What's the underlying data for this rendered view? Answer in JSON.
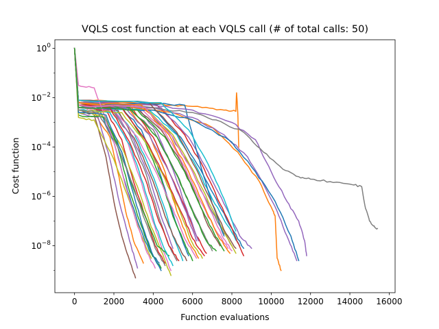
{
  "chart_data": {
    "type": "line",
    "title": "VQLS cost function at each VQLS call (# of total calls: 50)",
    "xlabel": "Function evaluations",
    "ylabel": "Cost function",
    "xlim": [
      -1000,
      16300
    ],
    "ylim_log10": [
      -9.9,
      0.35
    ],
    "yscale": "log",
    "xticks": [
      0,
      2000,
      4000,
      6000,
      8000,
      10000,
      12000,
      14000,
      16000
    ],
    "xtick_labels": [
      "0",
      "2000",
      "4000",
      "6000",
      "8000",
      "10000",
      "12000",
      "14000",
      "16000"
    ],
    "yticks_exp": [
      0,
      -2,
      -4,
      -6,
      -8
    ],
    "grid": false,
    "legend": "none",
    "palette": [
      "#1f77b4",
      "#ff7f0e",
      "#2ca02c",
      "#d62728",
      "#9467bd",
      "#8c564b",
      "#e377c2",
      "#7f7f7f",
      "#bcbd22",
      "#17becf"
    ],
    "series": [
      {
        "color": "#1f77b4",
        "x": [
          0,
          200,
          1200,
          2000,
          2600,
          3200,
          3800,
          4300
        ],
        "log10_y": [
          0,
          -2.3,
          -2.4,
          -3.8,
          -5.5,
          -7,
          -8.2,
          -8.7
        ]
      },
      {
        "color": "#ff7f0e",
        "x": [
          0,
          200,
          1000,
          1800,
          2200,
          2600,
          3000,
          3500
        ],
        "log10_y": [
          0,
          -2.5,
          -2.6,
          -3.6,
          -5,
          -6.6,
          -7.8,
          -8.7
        ]
      },
      {
        "color": "#2ca02c",
        "x": [
          0,
          200,
          1400,
          2200,
          2800,
          3400,
          3900,
          4400
        ],
        "log10_y": [
          0,
          -2.3,
          -2.5,
          -4,
          -5.8,
          -7.2,
          -8.3,
          -8.9
        ]
      },
      {
        "color": "#d62728",
        "x": [
          0,
          200,
          1600,
          2400,
          3000,
          3600,
          4100,
          4600
        ],
        "log10_y": [
          0,
          -2.4,
          -2.5,
          -3.7,
          -5.4,
          -6.8,
          -8,
          -8.7
        ]
      },
      {
        "color": "#9467bd",
        "x": [
          0,
          200,
          1200,
          1800,
          2300,
          2800,
          3200
        ],
        "log10_y": [
          0,
          -2.6,
          -2.8,
          -4.5,
          -6.3,
          -7.8,
          -8.9
        ]
      },
      {
        "color": "#8c564b",
        "x": [
          0,
          200,
          1000,
          1600,
          2000,
          2400,
          2800,
          3100
        ],
        "log10_y": [
          0,
          -2.5,
          -2.7,
          -4.4,
          -6.2,
          -7.6,
          -8.6,
          -9.3
        ]
      },
      {
        "color": "#e377c2",
        "x": [
          0,
          200,
          1600,
          2600,
          3300,
          3900,
          4400,
          4900
        ],
        "log10_y": [
          0,
          -2.2,
          -2.4,
          -3.6,
          -5.2,
          -6.8,
          -8,
          -9
        ]
      },
      {
        "color": "#7f7f7f",
        "x": [
          0,
          200,
          1800,
          2800,
          3600,
          4200,
          4700,
          5200
        ],
        "log10_y": [
          0,
          -2.3,
          -2.4,
          -3.5,
          -5,
          -6.6,
          -7.8,
          -8.6
        ]
      },
      {
        "color": "#bcbd22",
        "x": [
          0,
          200,
          1400,
          2400,
          3200,
          3800,
          4400,
          4900
        ],
        "log10_y": [
          0,
          -2.6,
          -2.7,
          -4,
          -5.6,
          -7,
          -8.2,
          -9.2
        ]
      },
      {
        "color": "#17becf",
        "x": [
          0,
          200,
          2000,
          3000,
          3800,
          4500,
          5000,
          5500
        ],
        "log10_y": [
          0,
          -2.2,
          -2.4,
          -3.4,
          -4.8,
          -6.3,
          -7.6,
          -8.6
        ]
      },
      {
        "color": "#1f77b4",
        "x": [
          0,
          200,
          2200,
          3400,
          4200,
          4800,
          5400,
          5800
        ],
        "log10_y": [
          0,
          -2.1,
          -2.2,
          -3.3,
          -4.7,
          -6.2,
          -7.6,
          -8.4
        ]
      },
      {
        "color": "#ff7f0e",
        "x": [
          0,
          200,
          2600,
          3800,
          4600,
          5200,
          5800,
          6300
        ],
        "log10_y": [
          0,
          -2.2,
          -2.3,
          -3.5,
          -5,
          -6.6,
          -7.8,
          -8.5
        ]
      },
      {
        "color": "#2ca02c",
        "x": [
          0,
          200,
          2400,
          3600,
          4400,
          5000,
          5600,
          6000
        ],
        "log10_y": [
          0,
          -2.3,
          -2.4,
          -3.8,
          -5.3,
          -6.8,
          -7.9,
          -8.6
        ]
      },
      {
        "color": "#d62728",
        "x": [
          0,
          200,
          2800,
          4000,
          4800,
          5600,
          6200,
          6700
        ],
        "log10_y": [
          0,
          -2.2,
          -2.3,
          -3.6,
          -5,
          -6.4,
          -7.6,
          -8.3
        ]
      },
      {
        "color": "#9467bd",
        "x": [
          0,
          200,
          3000,
          4200,
          5000,
          5700,
          6300
        ],
        "log10_y": [
          0,
          -2.1,
          -2.2,
          -3.4,
          -4.9,
          -6.5,
          -7.8
        ]
      },
      {
        "color": "#8c564b",
        "x": [
          0,
          200,
          3000,
          4400,
          5400,
          6200,
          6800,
          7400
        ],
        "log10_y": [
          0,
          -2.2,
          -2.3,
          -3.3,
          -4.6,
          -6,
          -7.2,
          -8
        ]
      },
      {
        "color": "#e377c2",
        "x": [
          0,
          200,
          3200,
          4600,
          5600,
          6400,
          7200,
          7800
        ],
        "log10_y": [
          0,
          -2.2,
          -2.3,
          -3.4,
          -4.8,
          -6.2,
          -7.4,
          -8.1
        ]
      },
      {
        "color": "#7f7f7f",
        "x": [
          0,
          200,
          3400,
          4800,
          5800,
          6600,
          7400,
          8000
        ],
        "log10_y": [
          0,
          -2.2,
          -2.3,
          -3.4,
          -4.7,
          -6,
          -7.2,
          -8
        ]
      },
      {
        "color": "#bcbd22",
        "x": [
          0,
          200,
          3600,
          5000,
          6000,
          6800,
          7600,
          8200
        ],
        "log10_y": [
          0,
          -2.3,
          -2.4,
          -3.5,
          -4.9,
          -6.2,
          -7.4,
          -8.3
        ]
      },
      {
        "color": "#17becf",
        "x": [
          0,
          200,
          3800,
          5200,
          6200,
          7000,
          7800,
          8400
        ],
        "log10_y": [
          0,
          -2.4,
          -2.5,
          -3.5,
          -4.8,
          -6.1,
          -7.2,
          -8
        ]
      },
      {
        "color": "#1f77b4",
        "x": [
          0,
          200,
          4000,
          5400,
          6400,
          7200,
          8000,
          8600
        ],
        "log10_y": [
          0,
          -2.3,
          -2.4,
          -3.6,
          -4.9,
          -6.1,
          -7.3,
          -8.1
        ]
      },
      {
        "color": "#d62728",
        "x": [
          0,
          200,
          4200,
          5600,
          6600,
          7400,
          8100,
          8600
        ],
        "log10_y": [
          0,
          -2.2,
          -2.3,
          -3.5,
          -4.9,
          -6.3,
          -7.5,
          -8.4
        ]
      },
      {
        "color": "#9467bd",
        "x": [
          0,
          200,
          4400,
          5800,
          6800,
          7600,
          8400,
          9000
        ],
        "log10_y": [
          0,
          -2.3,
          -2.4,
          -3.6,
          -5,
          -6.3,
          -7.6,
          -8.1
        ]
      },
      {
        "color": "#ff7f0e",
        "x": [
          0,
          200,
          3000,
          5000,
          6500,
          7600,
          8200,
          8240,
          8300,
          8350
        ],
        "log10_y": [
          0,
          -2.1,
          -2.2,
          -2.3,
          -2.4,
          -2.5,
          -2.55,
          -1.8,
          -2.6,
          -4
        ]
      },
      {
        "color": "#1f77b4",
        "x": [
          0,
          200,
          4000,
          5600,
          6000,
          6500,
          7000,
          7600
        ],
        "log10_y": [
          0,
          -2.2,
          -2.25,
          -2.3,
          -3.5,
          -5,
          -6.3,
          -7.6
        ]
      },
      {
        "color": "#ff7f0e",
        "x": [
          0,
          200,
          3000,
          5000,
          7000,
          8300,
          9400,
          10100,
          10200,
          10300,
          10500
        ],
        "log10_y": [
          0,
          -2.2,
          -2.4,
          -2.6,
          -3.2,
          -4.2,
          -5.4,
          -6.6,
          -6.8,
          -8.5,
          -9
        ]
      },
      {
        "color": "#9467bd",
        "x": [
          0,
          200,
          4000,
          6000,
          7600,
          8800,
          9600,
          10300,
          10900,
          11300
        ],
        "log10_y": [
          0,
          -2.3,
          -2.4,
          -2.8,
          -3.5,
          -4.4,
          -5.5,
          -6.6,
          -7.8,
          -8.6
        ]
      },
      {
        "color": "#1f77b4",
        "x": [
          0,
          200,
          4000,
          6000,
          8000,
          9200,
          10200,
          11000,
          11400
        ],
        "log10_y": [
          0,
          -2.4,
          -2.5,
          -2.9,
          -3.8,
          -5,
          -6.2,
          -7.6,
          -8.6
        ]
      },
      {
        "color": "#9467bd",
        "x": [
          0,
          200,
          4000,
          6000,
          8000,
          9200,
          10000,
          10800,
          11400,
          11700,
          11800
        ],
        "log10_y": [
          0,
          -2.2,
          -2.3,
          -2.5,
          -3,
          -3.7,
          -5,
          -6.2,
          -7,
          -7.8,
          -8.4
        ]
      },
      {
        "color": "#7f7f7f",
        "x": [
          0,
          200,
          4000,
          6000,
          7200,
          8600,
          9600,
          10600,
          11400,
          12000,
          13000,
          14000,
          14600,
          14800,
          15000,
          15200,
          15400
        ],
        "log10_y": [
          0,
          -2.3,
          -2.4,
          -2.6,
          -2.9,
          -3.4,
          -4.2,
          -4.9,
          -5.2,
          -5.3,
          -5.4,
          -5.5,
          -5.6,
          -6.5,
          -7,
          -7.2,
          -7.3
        ]
      },
      {
        "color": "#8c564b",
        "x": [
          0,
          200,
          2200,
          3200,
          4000,
          4600,
          5200,
          5700
        ],
        "log10_y": [
          0,
          -2.4,
          -2.5,
          -3.9,
          -5.4,
          -6.8,
          -7.9,
          -8.6
        ]
      },
      {
        "color": "#2ca02c",
        "x": [
          0,
          200,
          1500,
          2400,
          3000,
          3700,
          4200,
          4800
        ],
        "log10_y": [
          0,
          -2.7,
          -2.8,
          -4.2,
          -5.7,
          -7,
          -8,
          -8.4
        ]
      },
      {
        "color": "#e377c2",
        "x": [
          0,
          200,
          2000,
          3200,
          4200,
          5000,
          5600,
          6200
        ],
        "log10_y": [
          0,
          -2.4,
          -2.5,
          -3.6,
          -5.1,
          -6.5,
          -7.7,
          -8.5
        ]
      },
      {
        "color": "#17becf",
        "x": [
          0,
          200,
          1800,
          2800,
          3500,
          4000,
          4500,
          5000
        ],
        "log10_y": [
          0,
          -2.5,
          -2.6,
          -3.9,
          -5.5,
          -6.9,
          -8,
          -8.8
        ]
      },
      {
        "color": "#bcbd22",
        "x": [
          0,
          200,
          1000,
          2000,
          2800,
          3400,
          3900
        ],
        "log10_y": [
          0,
          -2.8,
          -2.9,
          -4.5,
          -6.2,
          -7.6,
          -8.5
        ]
      },
      {
        "color": "#d62728",
        "x": [
          0,
          200,
          2400,
          3600,
          4600,
          5400,
          6000,
          6600
        ],
        "log10_y": [
          0,
          -2.3,
          -2.4,
          -3.7,
          -5.2,
          -6.6,
          -7.7,
          -8.4
        ]
      },
      {
        "color": "#7f7f7f",
        "x": [
          0,
          200,
          2600,
          4000,
          5000,
          5800,
          6500,
          7000
        ],
        "log10_y": [
          0,
          -2.2,
          -2.3,
          -3.3,
          -4.8,
          -6.2,
          -7.4,
          -8.2
        ]
      },
      {
        "color": "#9467bd",
        "x": [
          0,
          200,
          2000,
          3000,
          3800,
          4400,
          5000
        ],
        "log10_y": [
          0,
          -2.4,
          -2.5,
          -3.7,
          -5.2,
          -6.8,
          -8.1
        ]
      },
      {
        "color": "#ff7f0e",
        "x": [
          0,
          200,
          3400,
          4800,
          5800,
          6600,
          7300,
          7900
        ],
        "log10_y": [
          0,
          -2.2,
          -2.3,
          -3.5,
          -5,
          -6.4,
          -7.6,
          -8.3
        ]
      },
      {
        "color": "#2ca02c",
        "x": [
          0,
          200,
          2800,
          4200,
          5200,
          6000,
          6700,
          7200
        ],
        "log10_y": [
          0,
          -2.3,
          -2.4,
          -3.6,
          -5.1,
          -6.6,
          -7.8,
          -8.2
        ]
      },
      {
        "color": "#e377c2",
        "x": [
          0,
          200,
          1000,
          2000,
          2600,
          3200,
          3700,
          4100
        ],
        "log10_y": [
          0,
          -1.5,
          -1.6,
          -3.8,
          -5.6,
          -7.2,
          -8.3,
          -8.9
        ]
      },
      {
        "color": "#8c564b",
        "x": [
          0,
          200,
          3800,
          5200,
          6200,
          7000,
          7700,
          8200
        ],
        "log10_y": [
          0,
          -2.1,
          -2.2,
          -3.4,
          -4.9,
          -6.3,
          -7.5,
          -8.1
        ]
      },
      {
        "color": "#17becf",
        "x": [
          0,
          200,
          4400,
          5800,
          6800,
          7600,
          8200
        ],
        "log10_y": [
          0,
          -2.1,
          -2.2,
          -3.3,
          -4.7,
          -6.1,
          -7.4
        ]
      },
      {
        "color": "#1f77b4",
        "x": [
          0,
          200,
          1600,
          2400,
          3000,
          3500,
          4000,
          4400
        ],
        "log10_y": [
          0,
          -2.6,
          -2.7,
          -4.2,
          -5.9,
          -7.3,
          -8.4,
          -9
        ]
      },
      {
        "color": "#bcbd22",
        "x": [
          0,
          200,
          2400,
          3600,
          4600,
          5400,
          6000,
          6500
        ],
        "log10_y": [
          0,
          -2.5,
          -2.6,
          -3.8,
          -5.3,
          -6.7,
          -7.9,
          -8.5
        ]
      },
      {
        "color": "#d62728",
        "x": [
          0,
          200,
          1800,
          2800,
          3600,
          4200,
          4800,
          5300
        ],
        "log10_y": [
          0,
          -2.3,
          -2.4,
          -3.8,
          -5.3,
          -6.8,
          -8,
          -8.6
        ]
      },
      {
        "color": "#9467bd",
        "x": [
          0,
          200,
          2600,
          3800,
          4800,
          5600,
          6200
        ],
        "log10_y": [
          0,
          -2.3,
          -2.4,
          -3.5,
          -5,
          -6.5,
          -7.8
        ]
      },
      {
        "color": "#7f7f7f",
        "x": [
          0,
          200,
          1200,
          2200,
          3000,
          3600,
          4100,
          4600
        ],
        "log10_y": [
          0,
          -2.5,
          -2.6,
          -4,
          -5.6,
          -7,
          -8.1,
          -8.8
        ]
      },
      {
        "color": "#e377c2",
        "x": [
          0,
          200,
          3600,
          5000,
          6000,
          6800,
          7500,
          8000
        ],
        "log10_y": [
          0,
          -2.3,
          -2.4,
          -3.6,
          -5,
          -6.4,
          -7.6,
          -8.2
        ]
      },
      {
        "color": "#2ca02c",
        "x": [
          0,
          200,
          3200,
          4600,
          5600,
          6400,
          7100,
          7600
        ],
        "log10_y": [
          0,
          -2.4,
          -2.5,
          -3.6,
          -5,
          -6.4,
          -7.5,
          -8.2
        ]
      }
    ]
  }
}
